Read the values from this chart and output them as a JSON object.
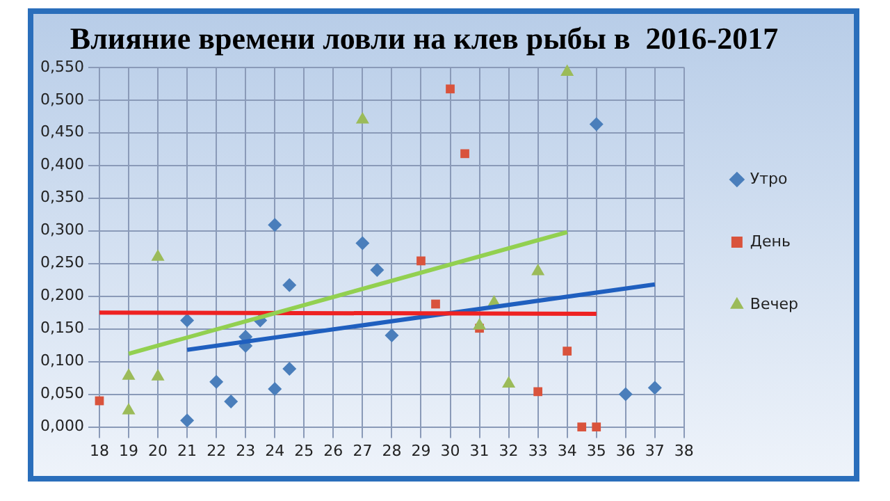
{
  "chart_data": {
    "type": "scatter",
    "title": "Влияние времени ловли на клев рыбы в  2016-2017",
    "xlim": [
      18,
      38
    ],
    "xticks": [
      18,
      19,
      20,
      21,
      22,
      23,
      24,
      25,
      26,
      27,
      28,
      29,
      30,
      31,
      32,
      33,
      34,
      35,
      36,
      37,
      38
    ],
    "ylim": [
      0,
      0.55
    ],
    "yticks": [
      {
        "value": 0,
        "label": "0,000"
      },
      {
        "value": 0.05,
        "label": "0,050"
      },
      {
        "value": 0.1,
        "label": "0,100"
      },
      {
        "value": 0.15,
        "label": "0,150"
      },
      {
        "value": 0.2,
        "label": "0,200"
      },
      {
        "value": 0.25,
        "label": "0,250"
      },
      {
        "value": 0.3,
        "label": "0,300"
      },
      {
        "value": 0.35,
        "label": "0,350"
      },
      {
        "value": 0.4,
        "label": "0,400"
      },
      {
        "value": 0.45,
        "label": "0,450"
      },
      {
        "value": 0.5,
        "label": "0,500"
      },
      {
        "value": 0.55,
        "label": "0,550"
      }
    ],
    "grid": true,
    "legend": "right",
    "series": [
      {
        "name": "Утро",
        "color": "#4a7ebb",
        "marker": "diamond",
        "x": [
          21,
          21,
          22,
          22.5,
          23,
          23,
          23.5,
          24,
          24,
          24.5,
          24.5,
          27,
          27.5,
          28,
          35,
          36,
          37
        ],
        "values": [
          0.01,
          0.163,
          0.069,
          0.039,
          0.138,
          0.124,
          0.163,
          0.309,
          0.058,
          0.217,
          0.089,
          0.281,
          0.24,
          0.14,
          0.463,
          0.05,
          0.06
        ]
      },
      {
        "name": "День",
        "color": "#d9533c",
        "marker": "square",
        "x": [
          18,
          29,
          29.5,
          30,
          30.5,
          31,
          33,
          34,
          34.5,
          35
        ],
        "values": [
          0.04,
          0.254,
          0.188,
          0.517,
          0.418,
          0.151,
          0.054,
          0.116,
          0,
          0
        ]
      },
      {
        "name": "Вечер",
        "color": "#9bbb59",
        "marker": "triangle",
        "x": [
          19,
          19,
          20,
          20,
          27,
          31,
          31.5,
          32,
          33,
          34
        ],
        "values": [
          0.078,
          0.025,
          0.26,
          0.077,
          0.47,
          0.155,
          0.19,
          0.066,
          0.238,
          0.543
        ]
      },
      {
        "type": "line",
        "color": "#1f5fbf",
        "x": [
          21,
          37
        ],
        "values": [
          0.118,
          0.218
        ]
      },
      {
        "type": "line",
        "color": "#ee2222",
        "x": [
          18,
          35
        ],
        "values": [
          0.175,
          0.173
        ]
      },
      {
        "type": "line",
        "color": "#92d050",
        "x": [
          19,
          34
        ],
        "values": [
          0.112,
          0.298
        ]
      }
    ]
  }
}
